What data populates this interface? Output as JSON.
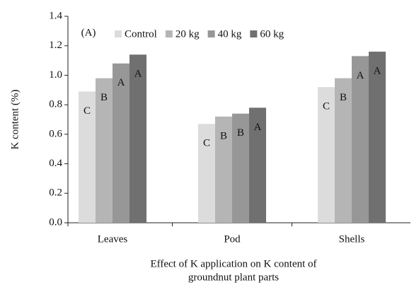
{
  "chart_data": {
    "type": "bar",
    "annotation": "(A)",
    "xlabel": [
      "Effect of K application on K content of",
      "groundnut plant parts"
    ],
    "ylabel": "K content (%)",
    "categories": [
      "Leaves",
      "Pod",
      "Shells"
    ],
    "series": [
      {
        "name": "Control",
        "color": "#dcdcdc",
        "values": [
          0.89,
          0.67,
          0.92
        ],
        "letters": [
          "C",
          "C",
          "C"
        ]
      },
      {
        "name": "20 kg",
        "color": "#b5b5b5",
        "values": [
          0.98,
          0.72,
          0.98
        ],
        "letters": [
          "B",
          "B",
          "B"
        ]
      },
      {
        "name": "40 kg",
        "color": "#979797",
        "values": [
          1.08,
          0.74,
          1.13
        ],
        "letters": [
          "A",
          "B",
          "A"
        ]
      },
      {
        "name": "60 kg",
        "color": "#707070",
        "values": [
          1.14,
          0.78,
          1.16
        ],
        "letters": [
          "A",
          "A",
          "A"
        ]
      }
    ],
    "ylim": [
      0,
      1.4
    ],
    "yticks": [
      {
        "value": 0,
        "label": "0.0"
      },
      0.2,
      0.4,
      0.6,
      0.8,
      {
        "value": 1,
        "label": "1.0"
      },
      1.2,
      1.4
    ]
  }
}
